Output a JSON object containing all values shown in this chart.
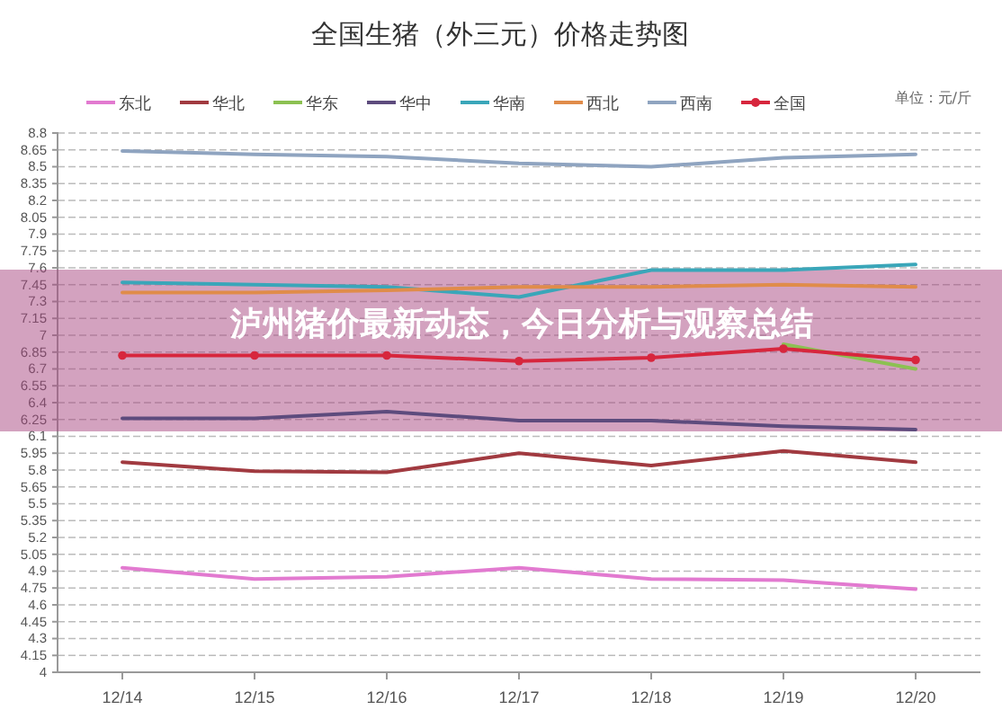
{
  "chart_data": {
    "type": "line",
    "title": "全国生猪（外三元）价格走势图",
    "subtitle": "泸州猪价最新动态，今日分析与观察总结",
    "annotations": [
      "单位：元/斤"
    ],
    "categories": [
      "12/14",
      "12/15",
      "12/16",
      "12/17",
      "12/18",
      "12/19",
      "12/20"
    ],
    "series": [
      {
        "name": "东北",
        "color": "#e27ad0",
        "values": [
          4.93,
          4.83,
          4.85,
          4.93,
          4.83,
          4.82,
          4.74
        ]
      },
      {
        "name": "华北",
        "color": "#a13a40",
        "values": [
          5.87,
          5.79,
          5.78,
          5.95,
          5.84,
          5.97,
          5.87
        ]
      },
      {
        "name": "华东",
        "color": "#8cc152",
        "values": [
          null,
          null,
          null,
          null,
          null,
          6.92,
          6.7
        ]
      },
      {
        "name": "华中",
        "color": "#5d4b7d",
        "values": [
          6.26,
          6.26,
          6.32,
          6.24,
          6.24,
          6.19,
          6.16
        ]
      },
      {
        "name": "华南",
        "color": "#3aa6b9",
        "values": [
          7.47,
          7.45,
          7.43,
          7.34,
          7.58,
          7.58,
          7.63
        ]
      },
      {
        "name": "西北",
        "color": "#e08c4a",
        "values": [
          7.38,
          7.38,
          7.4,
          7.43,
          7.43,
          7.45,
          7.43
        ]
      },
      {
        "name": "西南",
        "color": "#8fa4c0",
        "values": [
          8.64,
          8.61,
          8.59,
          8.53,
          8.5,
          8.58,
          8.61
        ]
      },
      {
        "name": "全国",
        "color": "#d7263d",
        "marker": "circle",
        "values": [
          6.82,
          6.82,
          6.82,
          6.77,
          6.8,
          6.88,
          6.78
        ]
      }
    ],
    "ylim": [
      4,
      8.8
    ],
    "yticks": [
      4,
      4.15,
      4.3,
      4.45,
      4.6,
      4.75,
      4.9,
      5.05,
      5.2,
      5.35,
      5.5,
      5.65,
      5.8,
      5.95,
      6.1,
      6.25,
      6.4,
      6.55,
      6.7,
      6.85,
      7,
      7.15,
      7.3,
      7.45,
      7.6,
      7.75,
      7.9,
      8.05,
      8.2,
      8.35,
      8.5,
      8.65,
      8.8
    ],
    "grid": "y",
    "legend": "top",
    "line_style": "solid"
  }
}
